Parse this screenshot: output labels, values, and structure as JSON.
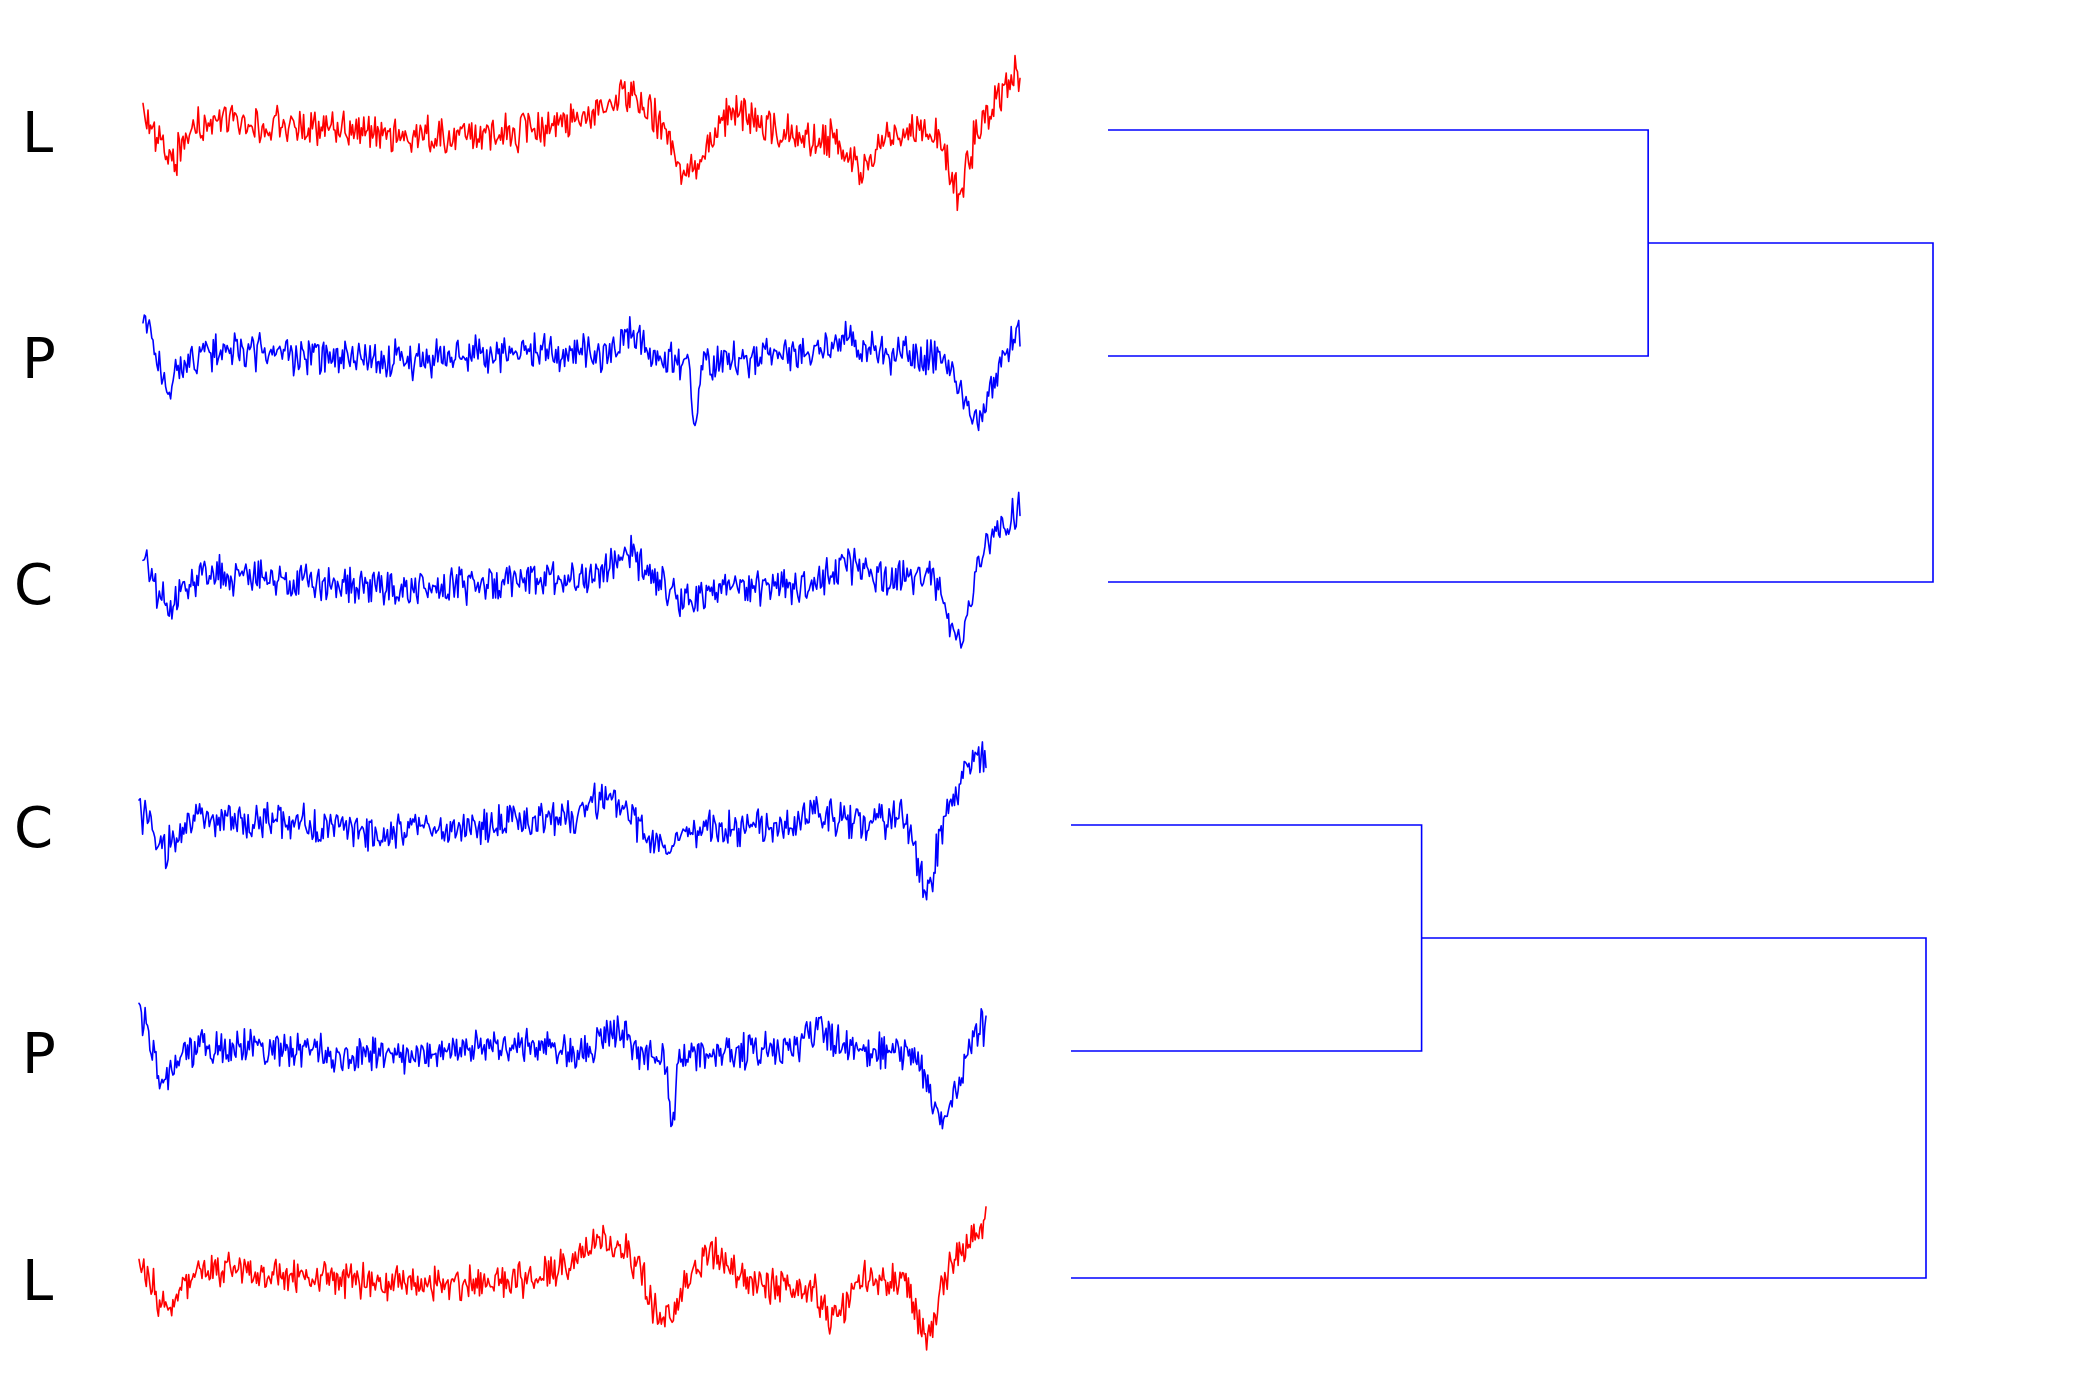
{
  "colors": {
    "background": "#ffffff",
    "dendrogram": "#0000ff",
    "class_L": "#ff0000",
    "class_P": "#0000ff",
    "class_C": "#0000ff"
  },
  "groups": [
    {
      "id": "top",
      "rows": [
        {
          "label": "L",
          "color": "#ff0000",
          "profile": "L"
        },
        {
          "label": "P",
          "color": "#0000ff",
          "profile": "P"
        },
        {
          "label": "C",
          "color": "#0000ff",
          "profile": "C"
        }
      ],
      "merges": [
        {
          "left_leaf": 0,
          "right_leaf": 1,
          "height": 0.55
        },
        {
          "left_leaf": 2,
          "right_cluster": 0,
          "height": 1.0
        }
      ]
    },
    {
      "id": "bottom",
      "rows": [
        {
          "label": "C",
          "color": "#0000ff",
          "profile": "C"
        },
        {
          "label": "P",
          "color": "#0000ff",
          "profile": "P"
        },
        {
          "label": "L",
          "color": "#ff0000",
          "profile": "L"
        }
      ],
      "merges": [
        {
          "left_leaf": 0,
          "right_leaf": 1,
          "height": 0.35
        },
        {
          "left_leaf": 2,
          "right_cluster": 0,
          "height": 1.0
        }
      ]
    }
  ]
}
